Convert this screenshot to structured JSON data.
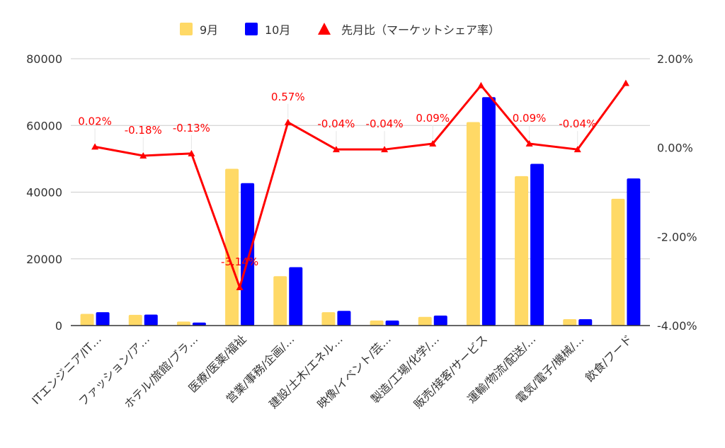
{
  "chart_data": {
    "type": "bar",
    "categories": [
      "ITエンジニア/IT…",
      "ファッション/ア…",
      "ホテル/旅館/ブラ…",
      "医療/医薬/福祉",
      "営業/事務/企画/…",
      "建設/土木/エネル…",
      "映像/イベント/芸…",
      "製造/工場/化学/…",
      "販売/接客/サービス",
      "運輸/物流/配送/…",
      "電気/電子/機械/…",
      "飲食/フード"
    ],
    "series": [
      {
        "name": "9月",
        "type": "bar",
        "axis": "left",
        "color": "#ffd966",
        "values": [
          3500,
          3200,
          1200,
          47000,
          14800,
          4000,
          1500,
          2600,
          61000,
          44800,
          1900,
          38000
        ]
      },
      {
        "name": "10月",
        "type": "bar",
        "axis": "left",
        "color": "#0000ff",
        "values": [
          4000,
          3300,
          900,
          42700,
          17500,
          4400,
          1500,
          3000,
          68500,
          48500,
          1900,
          44100
        ]
      },
      {
        "name": "先月比（マーケットシェア率）",
        "type": "line",
        "axis": "right",
        "color": "#ff0000",
        "values": [
          0.02,
          -0.18,
          -0.13,
          -3.14,
          0.57,
          -0.04,
          -0.04,
          0.09,
          1.4,
          0.09,
          -0.04,
          1.45
        ],
        "labels": [
          "0.02%",
          "-0.18%",
          "-0.13%",
          "-3.14%",
          "0.57%",
          "-0.04%",
          "-0.04%",
          "0.09%",
          "",
          "0.09%",
          "-0.04%",
          ""
        ]
      }
    ],
    "y_left": {
      "min": 0,
      "max": 80000,
      "ticks": [
        "0",
        "20000",
        "40000",
        "60000",
        "80000"
      ],
      "tick_values": [
        0,
        20000,
        40000,
        60000,
        80000
      ]
    },
    "y_right": {
      "min": -4,
      "max": 2,
      "ticks": [
        "-4.00%",
        "-2.00%",
        "0.00%",
        "2.00%"
      ],
      "tick_values": [
        -4,
        -2,
        0,
        2
      ]
    },
    "title": "",
    "xlabel": "",
    "ylabel": "",
    "grid": true,
    "legend_position": "top"
  }
}
